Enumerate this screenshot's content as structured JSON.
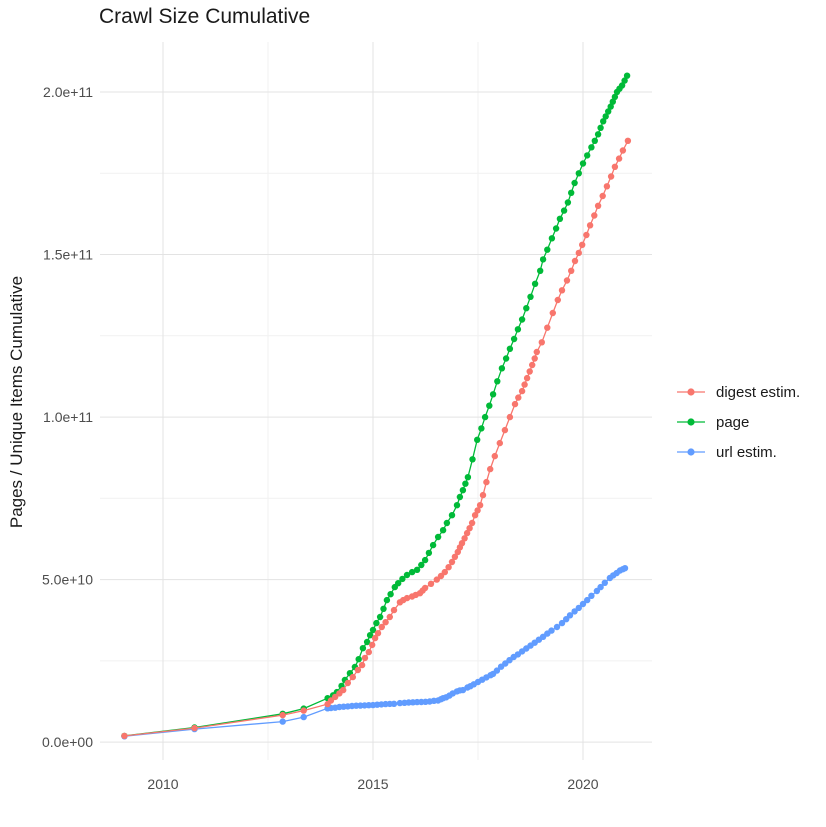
{
  "chart_data": {
    "type": "line",
    "title": "Crawl Size Cumulative",
    "xlabel": "",
    "ylabel": "Pages / Unique Items Cumulative",
    "grid": true,
    "legend_position": "right",
    "x_axis": {
      "range": [
        2008.5,
        2021.643
      ],
      "ticks": [
        2010,
        2015,
        2020
      ],
      "tick_labels": [
        "2010",
        "2015",
        "2020"
      ],
      "minor_ticks": [
        2012.5,
        2017.5
      ]
    },
    "y_axis": {
      "range": [
        -5500000000.0,
        215380000000.0
      ],
      "ticks": [
        0,
        50000000000.0,
        100000000000.0,
        150000000000.0,
        200000000000.0
      ],
      "tick_labels": [
        "0.0e+00",
        "5.0e+10",
        "1.0e+11",
        "1.5e+11",
        "2.0e+11"
      ],
      "minor_ticks": [
        25000000000.0,
        75000000000.0,
        125000000000.0,
        175000000000.0
      ]
    },
    "series": [
      {
        "id": "digest-estim",
        "name": "digest estim.",
        "color": "#F8766D",
        "points": [
          [
            2009.08,
            1900000000.0
          ],
          [
            2010.75,
            4300000000.0
          ],
          [
            2012.85,
            8300000000.0
          ],
          [
            2013.35,
            9700000000.0
          ],
          [
            2013.92,
            11700000000.0
          ],
          [
            2014.0,
            12800000000.0
          ],
          [
            2014.1,
            13900000000.0
          ],
          [
            2014.2,
            15000000000.0
          ],
          [
            2014.29,
            16000000000.0
          ],
          [
            2014.4,
            18200000000.0
          ],
          [
            2014.52,
            20000000000.0
          ],
          [
            2014.64,
            22200000000.0
          ],
          [
            2014.74,
            23700000000.0
          ],
          [
            2014.81,
            25900000000.0
          ],
          [
            2014.9,
            27700000000.0
          ],
          [
            2014.98,
            29900000000.0
          ],
          [
            2015.05,
            32000000000.0
          ],
          [
            2015.12,
            33500000000.0
          ],
          [
            2015.21,
            35400000000.0
          ],
          [
            2015.3,
            36900000000.0
          ],
          [
            2015.4,
            38500000000.0
          ],
          [
            2015.5,
            40600000000.0
          ],
          [
            2015.64,
            43000000000.0
          ],
          [
            2015.72,
            43700000000.0
          ],
          [
            2015.81,
            44300000000.0
          ],
          [
            2015.93,
            44800000000.0
          ],
          [
            2016.02,
            45300000000.0
          ],
          [
            2016.12,
            45800000000.0
          ],
          [
            2016.18,
            46600000000.0
          ],
          [
            2016.24,
            47400000000.0
          ],
          [
            2016.38,
            48700000000.0
          ],
          [
            2016.52,
            50000000000.0
          ],
          [
            2016.62,
            51100000000.0
          ],
          [
            2016.71,
            52300000000.0
          ],
          [
            2016.8,
            53800000000.0
          ],
          [
            2016.88,
            55400000000.0
          ],
          [
            2016.95,
            57000000000.0
          ],
          [
            2017.02,
            58500000000.0
          ],
          [
            2017.07,
            59900000000.0
          ],
          [
            2017.12,
            61200000000.0
          ],
          [
            2017.18,
            62700000000.0
          ],
          [
            2017.24,
            64300000000.0
          ],
          [
            2017.3,
            65800000000.0
          ],
          [
            2017.36,
            67400000000.0
          ],
          [
            2017.43,
            69800000000.0
          ],
          [
            2017.49,
            71300000000.0
          ],
          [
            2017.55,
            72900000000.0
          ],
          [
            2017.62,
            76000000000.0
          ],
          [
            2017.7,
            80000000000.0
          ],
          [
            2017.79,
            84000000000.0
          ],
          [
            2017.9,
            88000000000.0
          ],
          [
            2018.02,
            92000000000.0
          ],
          [
            2018.14,
            96000000000.0
          ],
          [
            2018.26,
            100000000000.0
          ],
          [
            2018.38,
            104000000000.0
          ],
          [
            2018.46,
            106000000000.0
          ],
          [
            2018.55,
            108000000000.0
          ],
          [
            2018.61,
            110000000000.0
          ],
          [
            2018.67,
            112000000000.0
          ],
          [
            2018.73,
            114000000000.0
          ],
          [
            2018.79,
            116000000000.0
          ],
          [
            2018.85,
            118000000000.0
          ],
          [
            2018.9,
            120000000000.0
          ],
          [
            2019.02,
            123000000000.0
          ],
          [
            2019.15,
            127500000000.0
          ],
          [
            2019.28,
            132000000000.0
          ],
          [
            2019.4,
            136000000000.0
          ],
          [
            2019.5,
            139000000000.0
          ],
          [
            2019.62,
            142000000000.0
          ],
          [
            2019.72,
            145000000000.0
          ],
          [
            2019.81,
            148000000000.0
          ],
          [
            2019.9,
            150500000000.0
          ],
          [
            2019.98,
            153000000000.0
          ],
          [
            2020.08,
            156000000000.0
          ],
          [
            2020.17,
            159000000000.0
          ],
          [
            2020.27,
            162000000000.0
          ],
          [
            2020.36,
            165000000000.0
          ],
          [
            2020.47,
            168000000000.0
          ],
          [
            2020.57,
            171000000000.0
          ],
          [
            2020.67,
            174000000000.0
          ],
          [
            2020.76,
            177000000000.0
          ],
          [
            2020.86,
            179500000000.0
          ],
          [
            2020.95,
            182000000000.0
          ],
          [
            2021.07,
            185000000000.0
          ]
        ]
      },
      {
        "id": "page",
        "name": "page",
        "color": "#00BA38",
        "points": [
          [
            2009.08,
            1900000000.0
          ],
          [
            2010.75,
            4500000000.0
          ],
          [
            2012.85,
            8700000000.0
          ],
          [
            2013.35,
            10300000000.0
          ],
          [
            2013.92,
            13500000000.0
          ],
          [
            2014.05,
            14400000000.0
          ],
          [
            2014.14,
            15400000000.0
          ],
          [
            2014.25,
            17300000000.0
          ],
          [
            2014.33,
            19100000000.0
          ],
          [
            2014.45,
            21200000000.0
          ],
          [
            2014.57,
            23100000000.0
          ],
          [
            2014.66,
            25500000000.0
          ],
          [
            2014.76,
            28900000000.0
          ],
          [
            2014.86,
            30800000000.0
          ],
          [
            2014.93,
            32900000000.0
          ],
          [
            2015.0,
            34500000000.0
          ],
          [
            2015.08,
            36600000000.0
          ],
          [
            2015.17,
            38500000000.0
          ],
          [
            2015.25,
            41000000000.0
          ],
          [
            2015.33,
            43700000000.0
          ],
          [
            2015.42,
            45500000000.0
          ],
          [
            2015.52,
            47700000000.0
          ],
          [
            2015.6,
            48900000000.0
          ],
          [
            2015.7,
            50200000000.0
          ],
          [
            2015.81,
            51400000000.0
          ],
          [
            2015.93,
            52300000000.0
          ],
          [
            2016.05,
            53000000000.0
          ],
          [
            2016.15,
            54500000000.0
          ],
          [
            2016.24,
            56000000000.0
          ],
          [
            2016.33,
            58200000000.0
          ],
          [
            2016.43,
            60600000000.0
          ],
          [
            2016.55,
            63100000000.0
          ],
          [
            2016.67,
            65200000000.0
          ],
          [
            2016.76,
            67400000000.0
          ],
          [
            2016.88,
            69800000000.0
          ],
          [
            2017.0,
            72900000000.0
          ],
          [
            2017.07,
            75400000000.0
          ],
          [
            2017.14,
            77500000000.0
          ],
          [
            2017.2,
            79500000000.0
          ],
          [
            2017.26,
            81500000000.0
          ],
          [
            2017.37,
            87000000000.0
          ],
          [
            2017.48,
            93000000000.0
          ],
          [
            2017.58,
            96500000000.0
          ],
          [
            2017.67,
            100000000000.0
          ],
          [
            2017.77,
            103500000000.0
          ],
          [
            2017.86,
            107000000000.0
          ],
          [
            2017.96,
            111000000000.0
          ],
          [
            2018.07,
            115000000000.0
          ],
          [
            2018.17,
            118000000000.0
          ],
          [
            2018.26,
            121000000000.0
          ],
          [
            2018.36,
            124000000000.0
          ],
          [
            2018.45,
            127000000000.0
          ],
          [
            2018.55,
            130000000000.0
          ],
          [
            2018.65,
            133500000000.0
          ],
          [
            2018.75,
            137000000000.0
          ],
          [
            2018.86,
            141000000000.0
          ],
          [
            2018.98,
            145000000000.0
          ],
          [
            2019.05,
            148500000000.0
          ],
          [
            2019.15,
            151500000000.0
          ],
          [
            2019.26,
            155000000000.0
          ],
          [
            2019.36,
            158000000000.0
          ],
          [
            2019.45,
            161000000000.0
          ],
          [
            2019.55,
            163500000000.0
          ],
          [
            2019.64,
            166000000000.0
          ],
          [
            2019.72,
            169000000000.0
          ],
          [
            2019.8,
            172000000000.0
          ],
          [
            2019.9,
            175000000000.0
          ],
          [
            2020.0,
            178000000000.0
          ],
          [
            2020.1,
            180500000000.0
          ],
          [
            2020.2,
            183000000000.0
          ],
          [
            2020.28,
            185000000000.0
          ],
          [
            2020.36,
            187000000000.0
          ],
          [
            2020.42,
            189000000000.0
          ],
          [
            2020.48,
            191000000000.0
          ],
          [
            2020.54,
            192500000000.0
          ],
          [
            2020.6,
            194000000000.0
          ],
          [
            2020.66,
            195500000000.0
          ],
          [
            2020.71,
            197000000000.0
          ],
          [
            2020.76,
            198500000000.0
          ],
          [
            2020.81,
            200000000000.0
          ],
          [
            2020.87,
            201000000000.0
          ],
          [
            2020.93,
            202000000000.0
          ],
          [
            2020.99,
            203500000000.0
          ],
          [
            2021.05,
            205000000000.0
          ]
        ]
      },
      {
        "id": "url-estim",
        "name": "url estim.",
        "color": "#619CFF",
        "points": [
          [
            2009.08,
            1800000000.0
          ],
          [
            2010.75,
            4000000000.0
          ],
          [
            2012.85,
            6300000000.0
          ],
          [
            2013.35,
            7700000000.0
          ],
          [
            2013.92,
            10400000000.0
          ],
          [
            2014.0,
            10500000000.0
          ],
          [
            2014.1,
            10600000000.0
          ],
          [
            2014.2,
            10800000000.0
          ],
          [
            2014.3,
            10900000000.0
          ],
          [
            2014.4,
            11000000000.0
          ],
          [
            2014.5,
            11100000000.0
          ],
          [
            2014.6,
            11200000000.0
          ],
          [
            2014.7,
            11250000000.0
          ],
          [
            2014.8,
            11300000000.0
          ],
          [
            2014.9,
            11350000000.0
          ],
          [
            2015.0,
            11400000000.0
          ],
          [
            2015.1,
            11500000000.0
          ],
          [
            2015.2,
            11600000000.0
          ],
          [
            2015.3,
            11700000000.0
          ],
          [
            2015.4,
            11750000000.0
          ],
          [
            2015.5,
            11800000000.0
          ],
          [
            2015.64,
            12000000000.0
          ],
          [
            2015.75,
            12100000000.0
          ],
          [
            2015.85,
            12200000000.0
          ],
          [
            2015.95,
            12250000000.0
          ],
          [
            2016.05,
            12300000000.0
          ],
          [
            2016.15,
            12350000000.0
          ],
          [
            2016.25,
            12400000000.0
          ],
          [
            2016.35,
            12500000000.0
          ],
          [
            2016.45,
            12700000000.0
          ],
          [
            2016.55,
            12800000000.0
          ],
          [
            2016.62,
            13200000000.0
          ],
          [
            2016.67,
            13500000000.0
          ],
          [
            2016.74,
            13800000000.0
          ],
          [
            2016.82,
            14300000000.0
          ],
          [
            2016.9,
            15000000000.0
          ],
          [
            2017.0,
            15600000000.0
          ],
          [
            2017.07,
            15900000000.0
          ],
          [
            2017.14,
            16000000000.0
          ],
          [
            2017.25,
            16800000000.0
          ],
          [
            2017.32,
            17200000000.0
          ],
          [
            2017.4,
            17800000000.0
          ],
          [
            2017.5,
            18500000000.0
          ],
          [
            2017.6,
            19200000000.0
          ],
          [
            2017.7,
            19900000000.0
          ],
          [
            2017.8,
            20600000000.0
          ],
          [
            2017.86,
            21000000000.0
          ],
          [
            2017.95,
            22000000000.0
          ],
          [
            2018.05,
            23200000000.0
          ],
          [
            2018.15,
            24200000000.0
          ],
          [
            2018.25,
            25200000000.0
          ],
          [
            2018.35,
            26200000000.0
          ],
          [
            2018.45,
            27000000000.0
          ],
          [
            2018.55,
            27900000000.0
          ],
          [
            2018.65,
            28800000000.0
          ],
          [
            2018.75,
            29700000000.0
          ],
          [
            2018.85,
            30600000000.0
          ],
          [
            2018.95,
            31500000000.0
          ],
          [
            2019.05,
            32400000000.0
          ],
          [
            2019.15,
            33400000000.0
          ],
          [
            2019.25,
            34300000000.0
          ],
          [
            2019.38,
            35400000000.0
          ],
          [
            2019.5,
            36600000000.0
          ],
          [
            2019.6,
            37800000000.0
          ],
          [
            2019.69,
            39000000000.0
          ],
          [
            2019.8,
            40200000000.0
          ],
          [
            2019.9,
            41300000000.0
          ],
          [
            2020.0,
            42500000000.0
          ],
          [
            2020.1,
            43700000000.0
          ],
          [
            2020.2,
            45000000000.0
          ],
          [
            2020.33,
            46500000000.0
          ],
          [
            2020.42,
            47700000000.0
          ],
          [
            2020.52,
            49000000000.0
          ],
          [
            2020.64,
            50500000000.0
          ],
          [
            2020.72,
            51300000000.0
          ],
          [
            2020.8,
            52000000000.0
          ],
          [
            2020.88,
            52800000000.0
          ],
          [
            2020.95,
            53200000000.0
          ],
          [
            2021.0,
            53500000000.0
          ]
        ]
      }
    ]
  }
}
